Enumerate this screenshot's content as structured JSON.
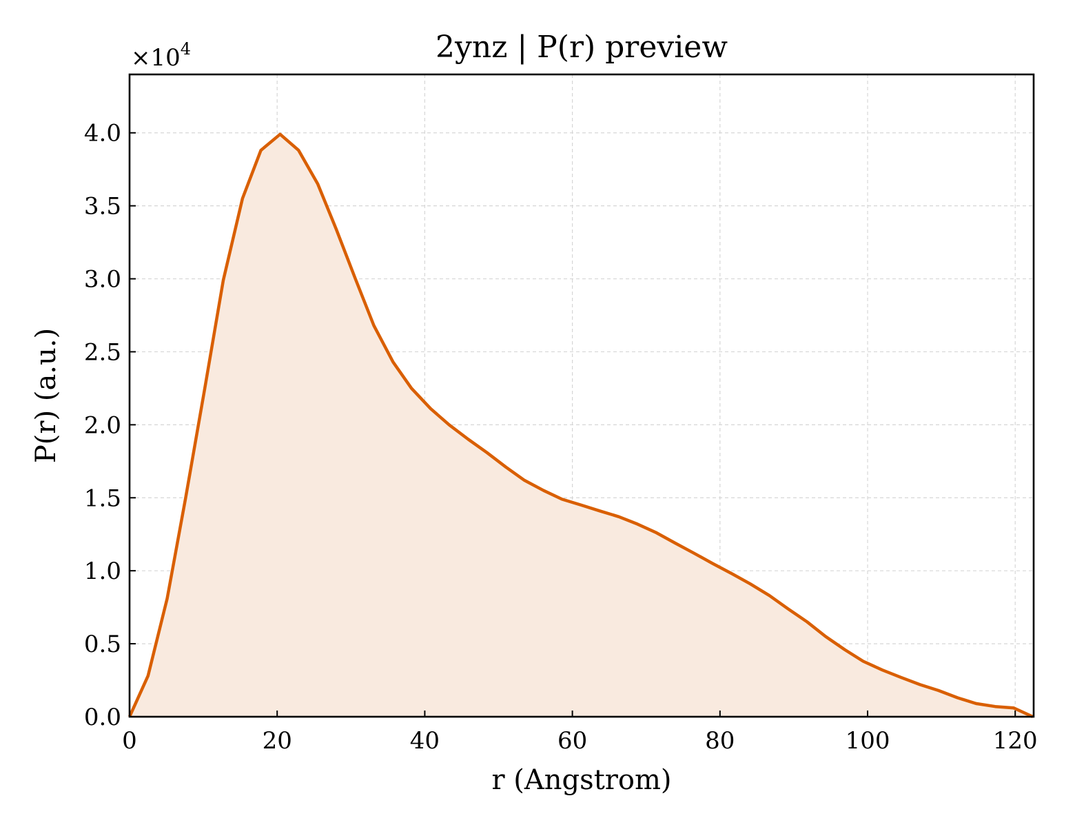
{
  "chart_data": {
    "type": "area",
    "title": "2ynz | P(r) preview",
    "xlabel": "r (Angstrom)",
    "ylabel": "P(r) (a.u.)",
    "y_offset_base": "×10",
    "y_offset_exp": "4",
    "xlim": [
      0,
      122.5
    ],
    "ylim": [
      0,
      44000
    ],
    "xticks": [
      0,
      20,
      40,
      60,
      80,
      100,
      120
    ],
    "xtick_labels": [
      "0",
      "20",
      "40",
      "60",
      "80",
      "100",
      "120"
    ],
    "yticks": [
      0,
      5000,
      10000,
      15000,
      20000,
      25000,
      30000,
      35000,
      40000
    ],
    "ytick_labels": [
      "0.0",
      "0.5",
      "1.0",
      "1.5",
      "2.0",
      "2.5",
      "3.0",
      "3.5",
      "4.0"
    ],
    "grid": true,
    "line_color": "#d95f02",
    "fill_color": "#f9eadf",
    "series": [
      {
        "x": [
          0,
          2.5,
          5.1,
          7.6,
          10.2,
          12.7,
          15.3,
          17.8,
          20.4,
          22.9,
          25.5,
          28.0,
          30.6,
          33.1,
          35.7,
          38.2,
          40.8,
          43.3,
          45.9,
          48.4,
          51.0,
          53.5,
          56.1,
          58.6,
          61.2,
          63.7,
          66.3,
          68.8,
          71.4,
          73.9,
          76.5,
          79.0,
          81.6,
          84.1,
          86.7,
          89.2,
          91.8,
          94.3,
          96.9,
          99.4,
          102.0,
          104.5,
          107.1,
          109.6,
          112.2,
          114.7,
          117.3,
          119.8,
          122.4
        ],
        "y": [
          0,
          2800,
          8100,
          15000,
          22500,
          29900,
          35500,
          38800,
          39900,
          38800,
          36500,
          33400,
          30000,
          26800,
          24300,
          22500,
          21100,
          20000,
          19000,
          18100,
          17100,
          16200,
          15500,
          14900,
          14500,
          14100,
          13700,
          13200,
          12600,
          11900,
          11200,
          10500,
          9800,
          9100,
          8300,
          7400,
          6500,
          5500,
          4600,
          3800,
          3200,
          2700,
          2200,
          1800,
          1300,
          900,
          700,
          600,
          0
        ]
      }
    ]
  }
}
